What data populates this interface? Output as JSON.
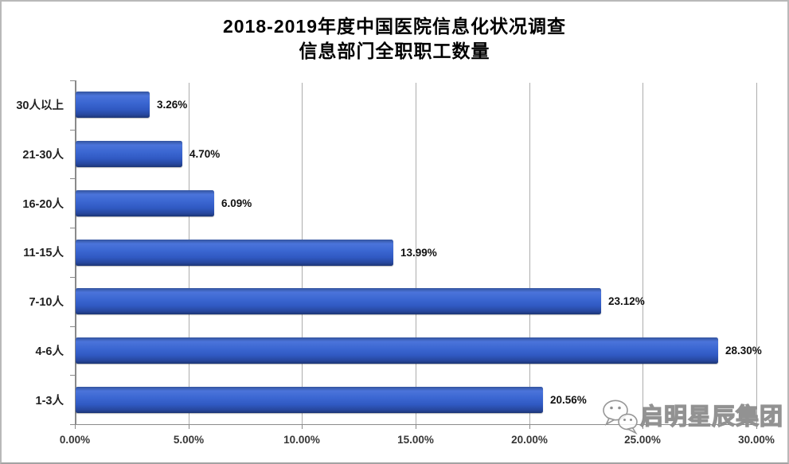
{
  "chart_data": {
    "type": "bar",
    "orientation": "horizontal",
    "title": "2018-2019年度中国医院信息化状况调查",
    "subtitle": "信息部门全职职工数量",
    "categories": [
      "30人以上",
      "21-30人",
      "16-20人",
      "11-15人",
      "7-10人",
      "4-6人",
      "1-3人"
    ],
    "values": [
      3.26,
      4.7,
      6.09,
      13.99,
      23.12,
      28.3,
      20.56
    ],
    "value_labels": [
      "3.26%",
      "4.70%",
      "6.09%",
      "13.99%",
      "23.12%",
      "28.30%",
      "20.56%"
    ],
    "x_ticks": [
      0,
      5,
      10,
      15,
      20,
      25,
      30
    ],
    "x_tick_labels": [
      "0.00%",
      "5.00%",
      "10.00%",
      "15.00%",
      "20.00%",
      "25.00%",
      "30.00%"
    ],
    "xlim": [
      0,
      30
    ],
    "xlabel": "",
    "ylabel": "",
    "grid": true,
    "legend": false,
    "bar_color": "#3561c8",
    "bar_gradient": [
      "#33549e 0%",
      "#4b74da 16%",
      "#3b67d2 42%",
      "#3059c2 68%",
      "#27479e 88%",
      "#1c3674 100%"
    ],
    "gridline_color": "#adadad",
    "axis_color": "#8a8a8a"
  },
  "watermark": {
    "icon": "wechat-icon",
    "text": "启明星辰集团"
  }
}
